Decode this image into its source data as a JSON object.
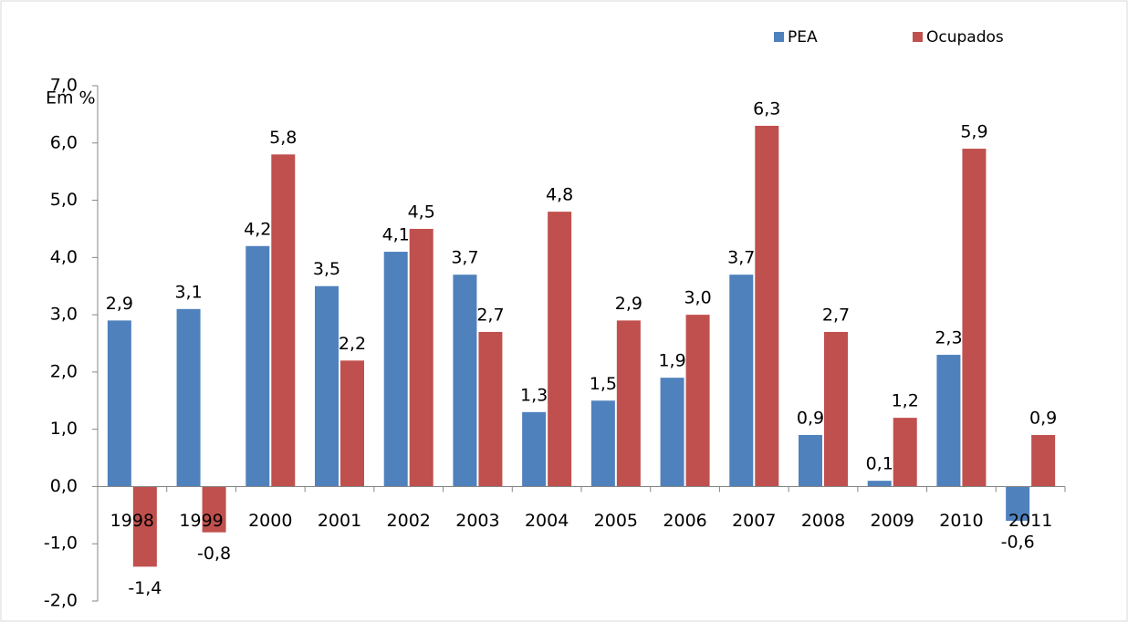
{
  "chart_data": {
    "type": "bar",
    "y_label": "Em %",
    "categories": [
      "1998",
      "1999",
      "2000",
      "2001",
      "2002",
      "2003",
      "2004",
      "2005",
      "2006",
      "2007",
      "2008",
      "2009",
      "2010",
      "2011"
    ],
    "series": [
      {
        "name": "PEA",
        "color": "#4f81bd",
        "values": [
          2.9,
          3.1,
          4.2,
          3.5,
          4.1,
          3.7,
          1.3,
          1.5,
          1.9,
          3.7,
          0.9,
          0.1,
          2.3,
          -0.6
        ],
        "value_labels": [
          "2,9",
          "3,1",
          "4,2",
          "3,5",
          "4,1",
          "3,7",
          "1,3",
          "1,5",
          "1,9",
          "3,7",
          "0,9",
          "0,1",
          "2,3",
          "-0,6"
        ]
      },
      {
        "name": "Ocupados",
        "color": "#c0504d",
        "values": [
          -1.4,
          -0.8,
          5.8,
          2.2,
          4.5,
          2.7,
          4.8,
          2.9,
          3.0,
          6.3,
          2.7,
          1.2,
          5.9,
          0.9
        ],
        "value_labels": [
          "-1,4",
          "-0,8",
          "5,8",
          "2,2",
          "4,5",
          "2,7",
          "4,8",
          "2,9",
          "3,0",
          "6,3",
          "2,7",
          "1,2",
          "5,9",
          "0,9"
        ]
      }
    ],
    "ylim": [
      -2,
      7
    ],
    "yticks": [
      {
        "value": -2,
        "label": "-2,0"
      },
      {
        "value": -1,
        "label": "-1,0"
      },
      {
        "value": 0,
        "label": "0,0"
      },
      {
        "value": 1,
        "label": "1,0"
      },
      {
        "value": 2,
        "label": "2,0"
      },
      {
        "value": 3,
        "label": "3,0"
      },
      {
        "value": 4,
        "label": "4,0"
      },
      {
        "value": 5,
        "label": "5,0"
      },
      {
        "value": 6,
        "label": "6,0"
      },
      {
        "value": 7,
        "label": "7,0"
      }
    ],
    "grid": false
  }
}
